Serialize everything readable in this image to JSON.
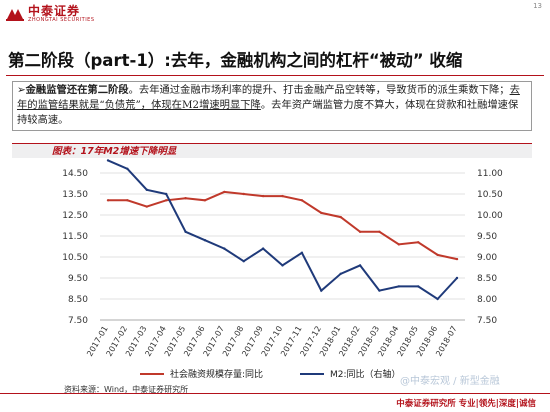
{
  "header": {
    "brand_cn": "中泰证券",
    "brand_en": "ZHONGTAI SECURITIES",
    "page_number": "13"
  },
  "slide": {
    "title": "第二阶段（part-1）:去年，金融机构之间的杠杆“被动” 收缩",
    "bullet_bold": "金融监管还在第二阶段",
    "bullet_text_1": "。去年通过金融市场利率的提升、打击金融产品空转等，导致货币的派生乘数下降；",
    "bullet_underlined": "去年的监管结果就是“负债荒”，体现在M2增速明显下降",
    "bullet_text_2": "。去年资产端监管力度不算大，体现在贷款和社融增速保持较高速。"
  },
  "figure_title": "图表：17年M2增速下降明显",
  "source": "资料来源：Wind，中泰证券研究所",
  "footer": "中泰证券研究所 专业|领先|深度|诚信",
  "watermark": "@中泰宏观 / 新型金融",
  "colors": {
    "brand_red": "#b3121b",
    "series_1": "#c0392b",
    "series_2": "#1f3a7a"
  },
  "chart_data": {
    "type": "line",
    "x": [
      "2017-01",
      "2017-02",
      "2017-03",
      "2017-04",
      "2017-05",
      "2017-06",
      "2017-07",
      "2017-08",
      "2017-09",
      "2017-10",
      "2017-11",
      "2017-12",
      "2018-01",
      "2018-02",
      "2018-03",
      "2018-04",
      "2018-05",
      "2018-06",
      "2018-07"
    ],
    "series": [
      {
        "name": "社会融资规模存量:同比",
        "axis": "left",
        "values": [
          13.2,
          13.2,
          12.9,
          13.2,
          13.3,
          13.2,
          13.6,
          13.5,
          13.4,
          13.4,
          13.2,
          12.6,
          12.4,
          11.7,
          11.7,
          11.1,
          11.2,
          10.6,
          10.4
        ]
      },
      {
        "name": "M2:同比（右轴）",
        "axis": "right",
        "values": [
          11.3,
          11.1,
          10.6,
          10.5,
          9.6,
          9.4,
          9.2,
          8.9,
          9.2,
          8.8,
          9.1,
          8.2,
          8.6,
          8.8,
          8.2,
          8.3,
          8.3,
          8.0,
          8.5
        ]
      }
    ],
    "y_left": {
      "ticks": [
        "14.50",
        "13.50",
        "12.50",
        "11.50",
        "10.50",
        "9.50",
        "8.50",
        "7.50"
      ],
      "ylim": [
        7.5,
        14.5
      ]
    },
    "y_right": {
      "ticks": [
        "11.00",
        "10.50",
        "10.00",
        "9.50",
        "9.00",
        "8.50",
        "8.00",
        "7.50"
      ],
      "ylim": [
        7.5,
        11.0
      ]
    },
    "legend": [
      "社会融资规模存量:同比",
      "M2:同比（右轴）"
    ],
    "legend_position": "bottom"
  }
}
